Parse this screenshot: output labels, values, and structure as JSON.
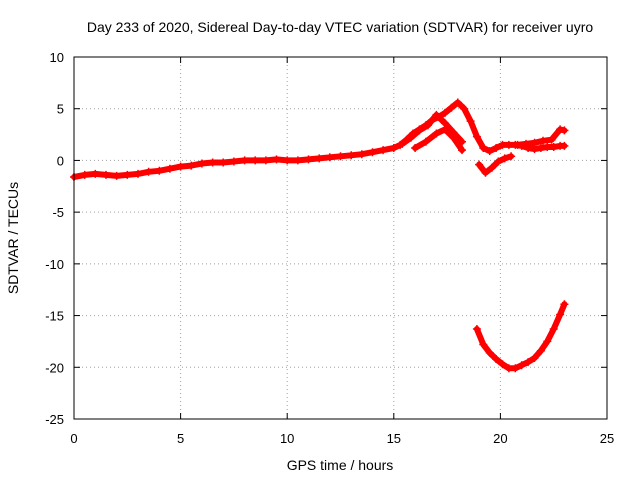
{
  "chart_data": {
    "type": "scatter",
    "title": "Day 233 of 2020, Sidereal Day-to-day VTEC variation (SDTVAR) for receiver uyro",
    "xlabel": "GPS time / hours",
    "ylabel": "SDTVAR / TECUs",
    "xlim": [
      0,
      25
    ],
    "ylim": [
      -25,
      10
    ],
    "x_ticks": [
      0,
      5,
      10,
      15,
      20,
      25
    ],
    "y_ticks": [
      -25,
      -20,
      -15,
      -10,
      -5,
      0,
      5,
      10
    ],
    "x_tick_labels": [
      "0",
      "5",
      "10",
      "15",
      "20",
      "25"
    ],
    "y_tick_labels": [
      "-25",
      "-20",
      "-15",
      "-10",
      "-5",
      "0",
      "5",
      "10"
    ],
    "grid": true,
    "marker_color": "#ff0000",
    "series": [
      {
        "name": "main-trace",
        "x": [
          0,
          0.5,
          1,
          1.5,
          2,
          2.5,
          3,
          3.5,
          4,
          4.5,
          5,
          5.5,
          6,
          6.5,
          7,
          7.5,
          8,
          8.5,
          9,
          9.5,
          10,
          10.5,
          11,
          11.5,
          12,
          12.5,
          13,
          13.5,
          14,
          14.5,
          15,
          15.3,
          15.6,
          15.9,
          16.2,
          16.5,
          16.8,
          17.1,
          17.4,
          17.7,
          18,
          18.3,
          18.6,
          18.9,
          19.2,
          19.5,
          19.8,
          20.1,
          20.4,
          20.7,
          21,
          21.3,
          21.6,
          21.9,
          22.2,
          22.5,
          22.8,
          23
        ],
        "y": [
          -1.6,
          -1.4,
          -1.3,
          -1.4,
          -1.5,
          -1.4,
          -1.3,
          -1.1,
          -1.0,
          -0.8,
          -0.6,
          -0.5,
          -0.3,
          -0.2,
          -0.2,
          -0.1,
          0.0,
          0.0,
          0.0,
          0.1,
          0.0,
          0.0,
          0.1,
          0.2,
          0.3,
          0.4,
          0.5,
          0.6,
          0.8,
          1.0,
          1.2,
          1.5,
          2.0,
          2.6,
          3.0,
          3.4,
          3.9,
          4.2,
          4.6,
          5.1,
          5.6,
          5.0,
          3.8,
          2.3,
          1.2,
          0.9,
          1.2,
          1.5,
          1.5,
          1.5,
          1.4,
          1.2,
          1.1,
          1.2,
          1.3,
          1.3,
          1.4,
          1.4
        ]
      },
      {
        "name": "upper-band",
        "x": [
          15.4,
          15.8,
          16.2,
          16.6,
          17.0,
          17.4,
          17.8,
          18.2
        ],
        "y": [
          1.6,
          2.2,
          2.9,
          3.4,
          4.4,
          3.6,
          2.7,
          1.8
        ]
      },
      {
        "name": "lower-band",
        "x": [
          16.0,
          16.5,
          17.0,
          17.4,
          17.8,
          18.2
        ],
        "y": [
          1.2,
          1.8,
          2.6,
          3.0,
          2.2,
          1.0
        ]
      },
      {
        "name": "dip-segment",
        "x": [
          19.0,
          19.3,
          19.6,
          19.9,
          20.2,
          20.5
        ],
        "y": [
          -0.4,
          -1.2,
          -0.7,
          -0.1,
          0.2,
          0.4
        ]
      },
      {
        "name": "late-fragment",
        "x": [
          20.8,
          21.2,
          21.6,
          22.0,
          22.4,
          22.8,
          23.0
        ],
        "y": [
          1.5,
          1.6,
          1.7,
          1.9,
          2.0,
          3.0,
          2.9
        ]
      },
      {
        "name": "lower-curve",
        "x": [
          18.9,
          19.2,
          19.5,
          19.8,
          20.1,
          20.4,
          20.7,
          21.0,
          21.3,
          21.6,
          21.9,
          22.2,
          22.5,
          22.8,
          23.0
        ],
        "y": [
          -16.3,
          -17.8,
          -18.6,
          -19.2,
          -19.7,
          -20.1,
          -20.1,
          -19.8,
          -19.5,
          -19.1,
          -18.4,
          -17.5,
          -16.3,
          -14.9,
          -13.9
        ]
      }
    ]
  }
}
